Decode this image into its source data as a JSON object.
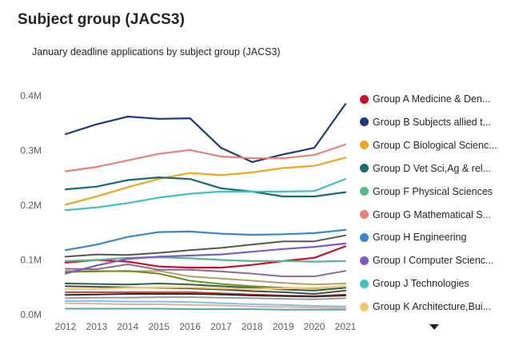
{
  "page": {
    "title": "Subject group (JACS3)"
  },
  "chart_data": {
    "type": "line",
    "title": "January deadline applications by subject group (JACS3)",
    "xlabel": "",
    "ylabel": "",
    "x": [
      "2012",
      "2013",
      "2014",
      "2015",
      "2016",
      "2017",
      "2018",
      "2019",
      "2020",
      "2021"
    ],
    "ylim": [
      0,
      400000
    ],
    "yticks": [
      {
        "value": 0,
        "label": "0.0M"
      },
      {
        "value": 100000,
        "label": "0.1M"
      },
      {
        "value": 200000,
        "label": "0.2M"
      },
      {
        "value": 300000,
        "label": "0.3M"
      },
      {
        "value": 400000,
        "label": "0.4M"
      }
    ],
    "grid": false,
    "legend_position": "right",
    "series": [
      {
        "name": "Group A Medicine & Den...",
        "color": "#C8102E",
        "values": [
          95000,
          100000,
          97000,
          88000,
          86000,
          86000,
          91000,
          98000,
          104000,
          125000
        ]
      },
      {
        "name": "Group B Subjects allied t...",
        "color": "#1F3A7A",
        "values": [
          330000,
          348000,
          362000,
          358000,
          359000,
          305000,
          279000,
          293000,
          305000,
          385000
        ]
      },
      {
        "name": "Group C Biological Scienc...",
        "color": "#E8A825",
        "values": [
          201000,
          216000,
          233000,
          248000,
          259000,
          255000,
          260000,
          268000,
          272000,
          287000
        ]
      },
      {
        "name": "Group D Vet Sci,Ag & rel...",
        "color": "#1A6B6B",
        "values": [
          229000,
          234000,
          246000,
          251000,
          248000,
          231000,
          225000,
          216000,
          216000,
          224000
        ]
      },
      {
        "name": "Group F Physical Sciences",
        "color": "#5DB58A",
        "values": [
          98000,
          100000,
          104000,
          105000,
          103000,
          100000,
          98000,
          98000,
          97000,
          98000
        ]
      },
      {
        "name": "Group G Mathematical S...",
        "color": "#E8827A",
        "values": [
          262000,
          270000,
          282000,
          294000,
          301000,
          289000,
          286000,
          286000,
          292000,
          311000
        ]
      },
      {
        "name": "Group H Engineering",
        "color": "#3A86C8",
        "values": [
          118000,
          128000,
          142000,
          151000,
          152000,
          148000,
          146000,
          147000,
          149000,
          155000
        ]
      },
      {
        "name": "Group I Computer Scienc...",
        "color": "#7B5CC4",
        "values": [
          75000,
          90000,
          102000,
          106000,
          108000,
          110000,
          115000,
          120000,
          124000,
          130000
        ]
      },
      {
        "name": "Group J Technologies",
        "color": "#3EC1C0",
        "values": [
          191000,
          196000,
          204000,
          214000,
          221000,
          225000,
          225000,
          225000,
          226000,
          248000
        ]
      },
      {
        "name": "Group K Architecture,Bui...",
        "color": "#F5C76B",
        "values": [
          47000,
          47000,
          49000,
          50000,
          50000,
          48000,
          47000,
          48000,
          49000,
          52000
        ]
      }
    ],
    "extra_series": [
      {
        "color": "#555555",
        "values": [
          106000,
          110000,
          109000,
          113000,
          118000,
          122000,
          128000,
          134000,
          134000,
          145000
        ]
      },
      {
        "color": "#B0A070",
        "values": [
          80000,
          80000,
          79000,
          80000,
          70000,
          66000,
          62000,
          58000,
          55000,
          57000
        ]
      },
      {
        "color": "#8B6B8E",
        "values": [
          84000,
          83000,
          92000,
          82000,
          82000,
          79000,
          75000,
          70000,
          70000,
          80000
        ]
      },
      {
        "color": "#6B8E23",
        "values": [
          78000,
          79000,
          80000,
          75000,
          62000,
          56000,
          52000,
          49000,
          48000,
          52000
        ]
      },
      {
        "color": "#2E5E4E",
        "values": [
          57000,
          56000,
          55000,
          57000,
          55000,
          52000,
          49000,
          46000,
          44000,
          49000
        ]
      },
      {
        "color": "#4A4A4A",
        "values": [
          52000,
          51000,
          50000,
          49000,
          48000,
          46000,
          43000,
          41000,
          38000,
          44000
        ]
      },
      {
        "color": "#C04040",
        "values": [
          41000,
          41000,
          41000,
          41000,
          41000,
          39000,
          37000,
          35000,
          34000,
          37000
        ]
      },
      {
        "color": "#2A2A2A",
        "values": [
          36000,
          37000,
          38000,
          38000,
          38000,
          37000,
          35000,
          34000,
          33000,
          35000
        ]
      },
      {
        "color": "#9C9C9C",
        "values": [
          30000,
          31000,
          31000,
          32000,
          32000,
          31000,
          30000,
          29000,
          28000,
          30000
        ]
      },
      {
        "color": "#7EC4E0",
        "values": [
          25000,
          25000,
          24000,
          24000,
          23000,
          21000,
          19000,
          18000,
          16000,
          15000
        ]
      },
      {
        "color": "#E0B0A0",
        "values": [
          21000,
          20000,
          19000,
          19000,
          18000,
          17000,
          15000,
          14000,
          13000,
          12000
        ]
      },
      {
        "color": "#5AA5A5",
        "values": [
          11000,
          11000,
          11000,
          11000,
          10000,
          10000,
          10000,
          9000,
          9000,
          9000
        ]
      }
    ]
  },
  "icons": {
    "legend_scroll": "chevron-down-icon"
  }
}
